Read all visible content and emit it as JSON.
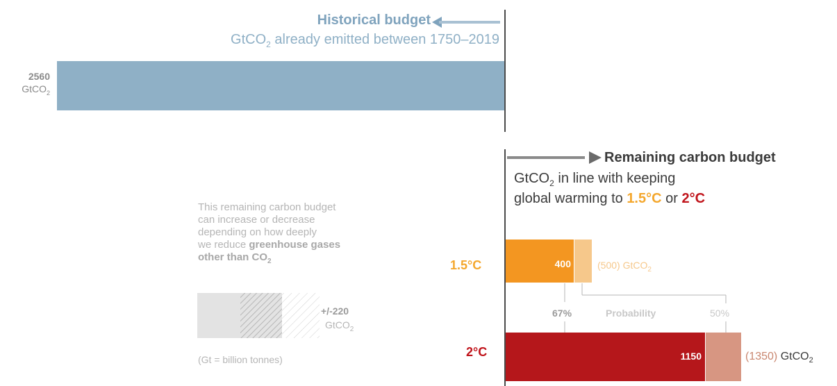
{
  "chart_data": {
    "type": "bar",
    "historical": {
      "title": "Historical budget",
      "subtitle_prefix": "GtCO",
      "subtitle_sub": "2",
      "subtitle_suffix": " already emitted between 1750–2019",
      "value": 2560,
      "value_label": "2560",
      "unit": "GtCO",
      "unit_sub": "2",
      "color": "#8fb0c6"
    },
    "remaining": {
      "title": "Remaining carbon budget",
      "subtitle_line1_prefix": "GtCO",
      "subtitle_line1_sub": "2",
      "subtitle_line1_suffix": " in line with keeping",
      "subtitle_line2_prefix": "global warming to ",
      "subtitle_line2_a": "1.5°C",
      "subtitle_line2_mid": " or ",
      "subtitle_line2_b": "2°C",
      "categories": [
        "1.5°C",
        "2°C"
      ],
      "series": [
        {
          "name": "67%",
          "values": [
            400,
            1150
          ],
          "labels": [
            "400",
            "1150"
          ],
          "colors": [
            "#f39621",
            "#b5171b"
          ]
        },
        {
          "name": "50%",
          "values": [
            500,
            1350
          ],
          "labels": [
            "(500) GtCO",
            "(1350) GtCO"
          ],
          "colors": [
            "#f6c88b",
            "#d79682"
          ]
        }
      ],
      "probability_label": "Probability",
      "p67": "67%",
      "p50": "50%",
      "unit_sub": "2"
    },
    "uncertainty": {
      "value": "+/-220",
      "unit": "GtCO",
      "unit_sub": "2"
    },
    "note": {
      "line1": "This remaining carbon budget",
      "line2": "can increase or decrease",
      "line3": "depending on how deeply",
      "line4_prefix": "we reduce ",
      "line4_bold": "greenhouse gases",
      "line5_bold": "other than CO",
      "line5_sub": "2"
    },
    "gt_note": "(Gt = billion tonnes)"
  }
}
